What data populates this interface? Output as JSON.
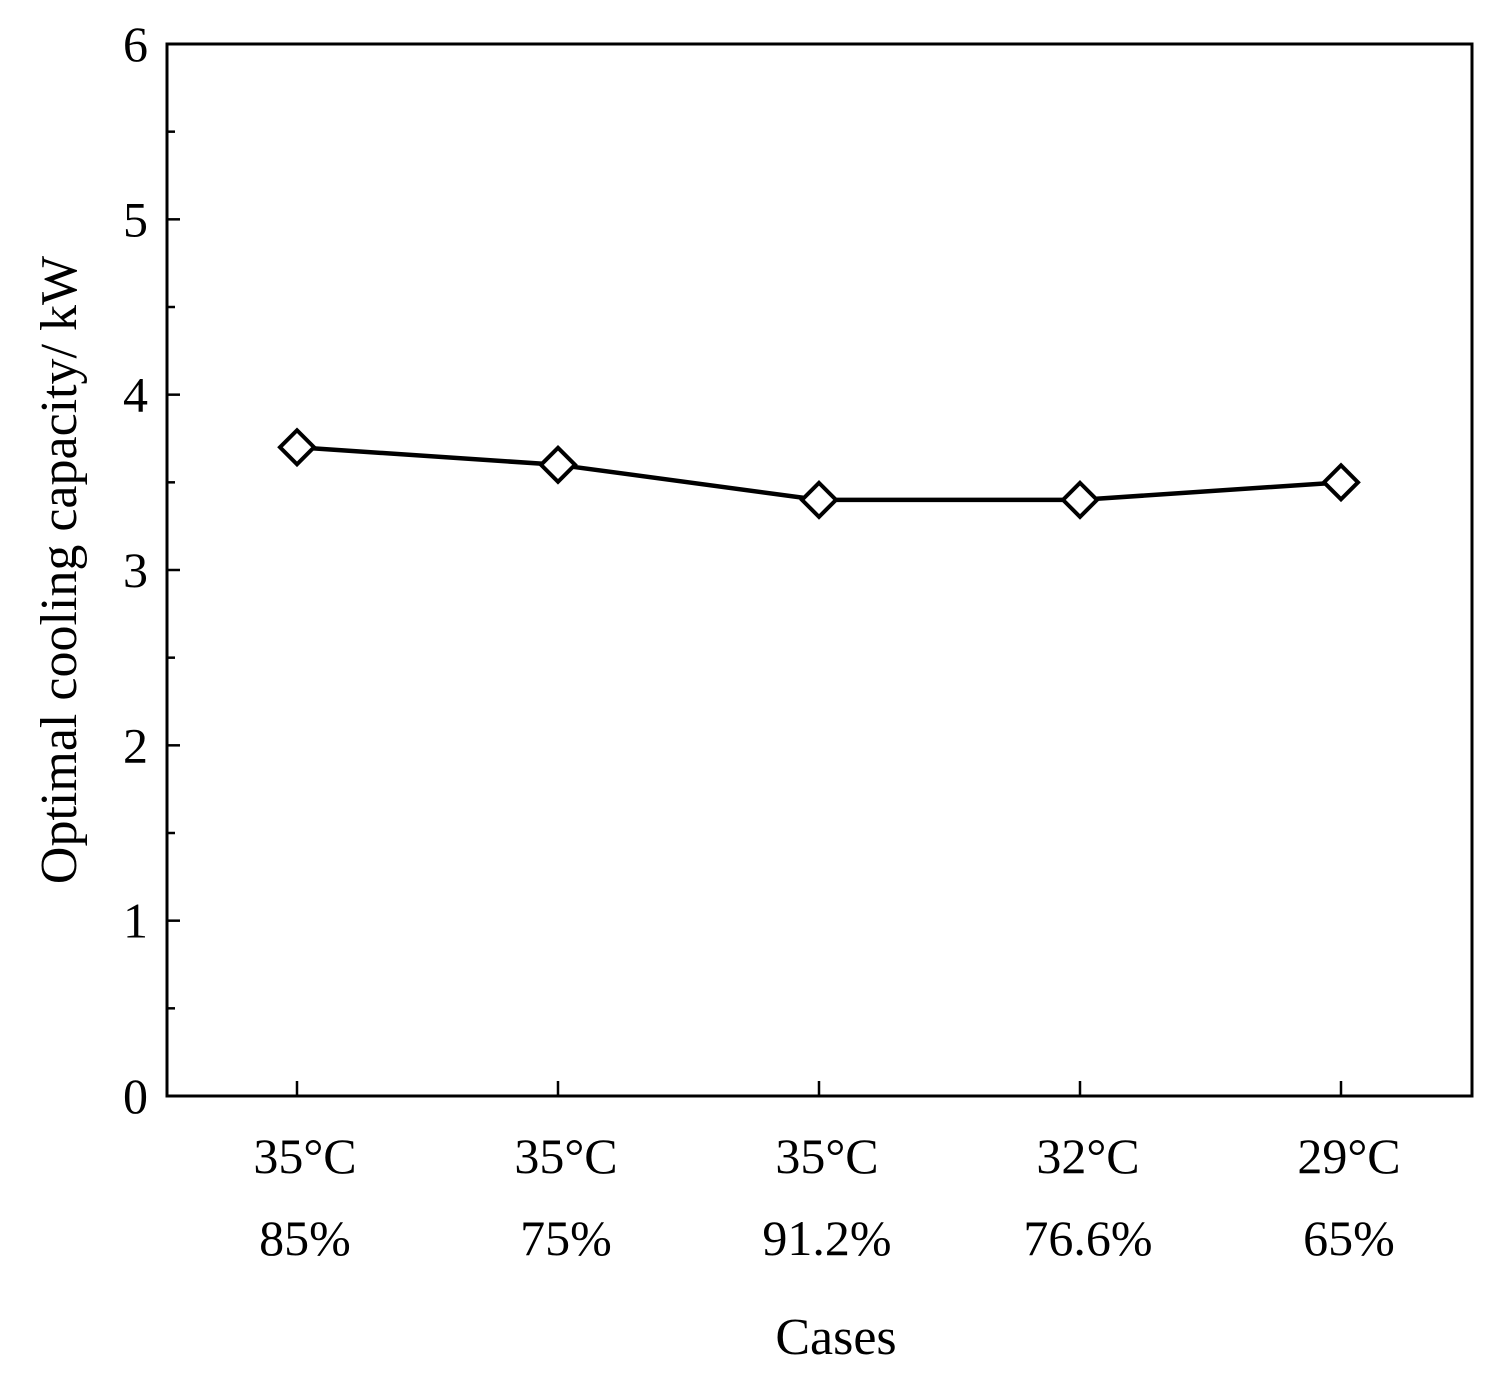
{
  "chart_data": {
    "type": "line",
    "title": "",
    "xlabel": "Cases",
    "ylabel": "Optimal cooling capacity/ kW",
    "categories": [
      [
        "35°C",
        "85%"
      ],
      [
        "35°C",
        "75%"
      ],
      [
        "35°C",
        "91.2%"
      ],
      [
        "32°C",
        "76.6%"
      ],
      [
        "29°C",
        "65%"
      ]
    ],
    "series": [
      {
        "values": [
          3.7,
          3.6,
          3.4,
          3.4,
          3.5
        ],
        "marker": "open-diamond",
        "color": "#000000"
      }
    ],
    "ylim": [
      0,
      6
    ],
    "yticks": [
      "0",
      "1",
      "2",
      "3",
      "4",
      "5",
      "6"
    ],
    "grid": false,
    "legend": "none"
  }
}
